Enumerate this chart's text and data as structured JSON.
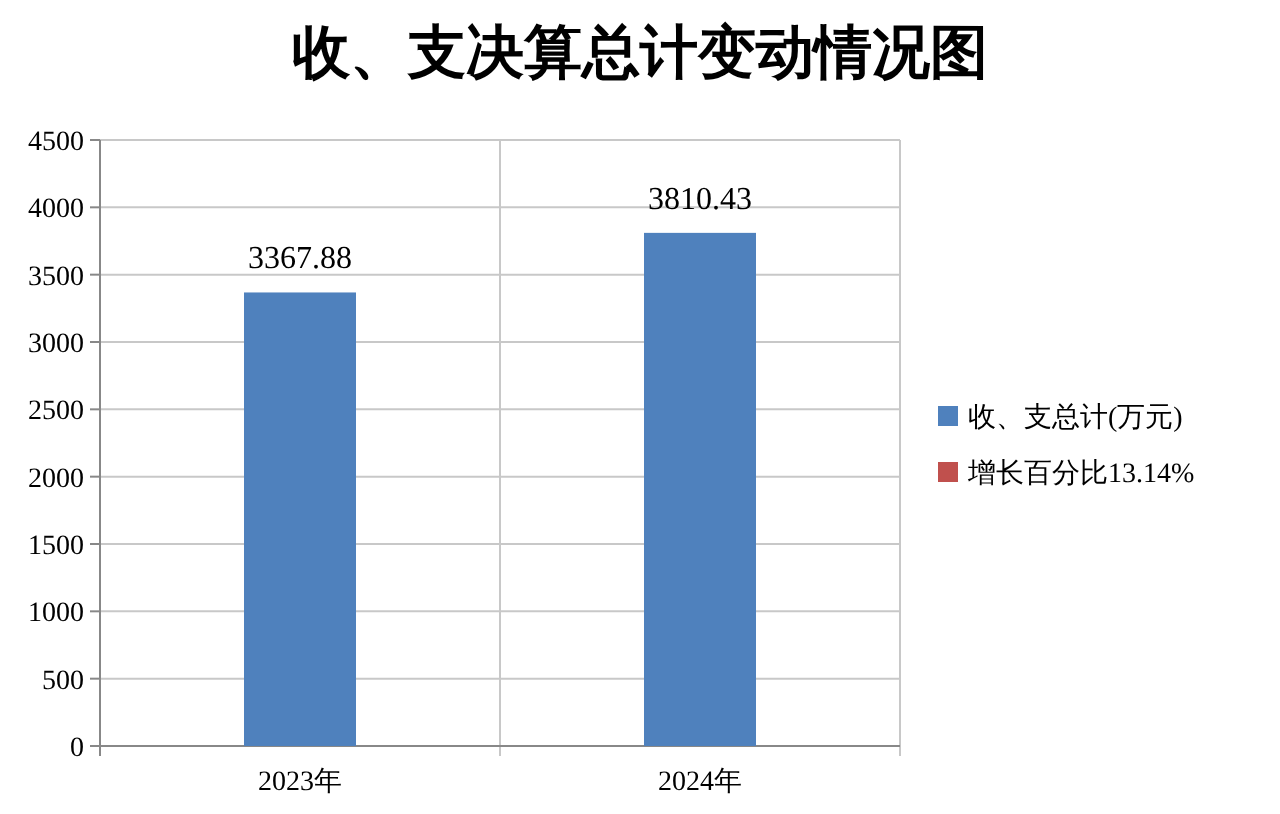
{
  "chart_data": {
    "type": "bar",
    "title": "收、支决算总计变动情况图",
    "categories": [
      "2023年",
      "2024年"
    ],
    "series": [
      {
        "name": "收、支总计(万元)",
        "color": "#4f81bd",
        "values": [
          3367.88,
          3810.43
        ]
      },
      {
        "name": "增长百分比13.14%",
        "color": "#c0504d",
        "values": [
          null,
          null
        ]
      }
    ],
    "ylim": [
      0,
      4500
    ],
    "yticks": [
      0,
      500,
      1000,
      1500,
      2000,
      2500,
      3000,
      3500,
      4000,
      4500
    ],
    "grid": "y",
    "legend": "right",
    "data_labels": true
  }
}
